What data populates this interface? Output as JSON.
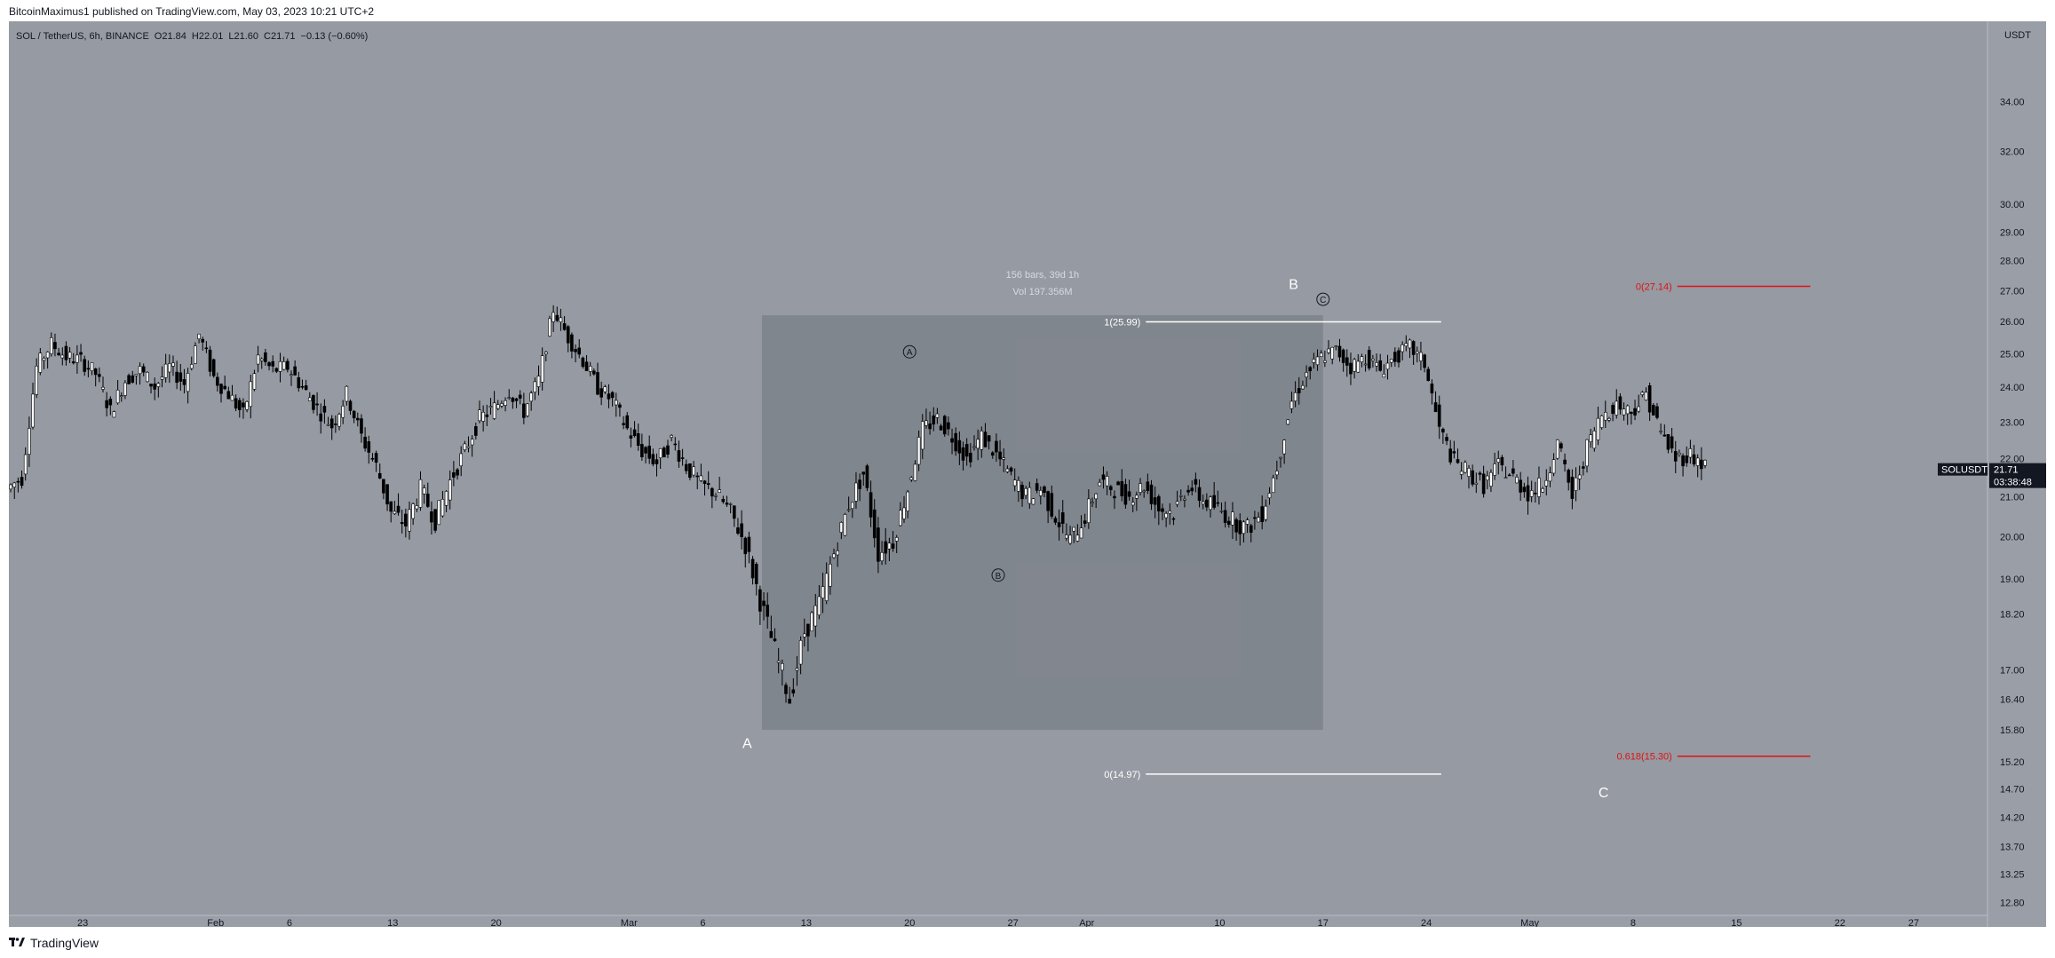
{
  "header": {
    "published": "BitcoinMaximus1 published on TradingView.com, May 03, 2023 10:21 UTC+2"
  },
  "legend": {
    "symbol": "SOL / TetherUS, 6h, BINANCE",
    "o_label": "O",
    "o_value": "21.84",
    "h_label": "H",
    "h_value": "22.01",
    "l_label": "L",
    "l_value": "21.60",
    "c_label": "C",
    "c_value": "21.71",
    "change": "−0.13 (−0.60%)"
  },
  "footer": {
    "brand": "TradingView"
  },
  "colors": {
    "chart_bg": "#959aa3",
    "panel_bg": "#999ea7",
    "box_fill": "#7d828b",
    "candle": "#000000",
    "fib_red": "#e31212",
    "fib_white": "#ffffff",
    "label_white": "#ffffff"
  },
  "chart_data": {
    "type": "candlestick",
    "symbol": "SOLUSDT",
    "interval": "6h",
    "currency": "USDT",
    "y_scale": "log",
    "ylim": [
      12.6,
      37.5
    ],
    "xlim": [
      "2023-01-18",
      "2023-06-01"
    ],
    "y_ticks": [
      "34.00",
      "32.00",
      "30.00",
      "29.00",
      "28.00",
      "27.00",
      "26.00",
      "25.00",
      "24.00",
      "23.00",
      "22.00",
      "21.00",
      "20.00",
      "19.00",
      "18.20",
      "17.00",
      "16.40",
      "15.80",
      "15.20",
      "14.70",
      "14.20",
      "13.70",
      "13.25",
      "12.80"
    ],
    "x_ticks": [
      {
        "date": "2023-01-23",
        "label": "23"
      },
      {
        "date": "2023-02-01",
        "label": "Feb"
      },
      {
        "date": "2023-02-06",
        "label": "6"
      },
      {
        "date": "2023-02-13",
        "label": "13"
      },
      {
        "date": "2023-02-20",
        "label": "20"
      },
      {
        "date": "2023-03-01",
        "label": "Mar"
      },
      {
        "date": "2023-03-06",
        "label": "6"
      },
      {
        "date": "2023-03-13",
        "label": "13"
      },
      {
        "date": "2023-03-20",
        "label": "20"
      },
      {
        "date": "2023-03-27",
        "label": "27"
      },
      {
        "date": "2023-04-01",
        "label": "Apr"
      },
      {
        "date": "2023-04-10",
        "label": "10"
      },
      {
        "date": "2023-04-17",
        "label": "17"
      },
      {
        "date": "2023-04-24",
        "label": "24"
      },
      {
        "date": "2023-05-01",
        "label": "May"
      },
      {
        "date": "2023-05-08",
        "label": "8"
      },
      {
        "date": "2023-05-15",
        "label": "15"
      },
      {
        "date": "2023-05-22",
        "label": "22"
      },
      {
        "date": "2023-05-27",
        "label": "27"
      }
    ],
    "price_path": [
      {
        "t": "2023-01-18",
        "p": 21.2
      },
      {
        "t": "2023-01-19",
        "p": 21.5
      },
      {
        "t": "2023-01-20",
        "p": 24.6
      },
      {
        "t": "2023-01-21",
        "p": 25.3
      },
      {
        "t": "2023-01-22",
        "p": 24.9
      },
      {
        "t": "2023-01-23",
        "p": 24.8
      },
      {
        "t": "2023-01-24",
        "p": 24.4
      },
      {
        "t": "2023-01-25",
        "p": 23.3
      },
      {
        "t": "2023-01-26",
        "p": 24.2
      },
      {
        "t": "2023-01-27",
        "p": 24.5
      },
      {
        "t": "2023-01-28",
        "p": 24.0
      },
      {
        "t": "2023-01-29",
        "p": 24.6
      },
      {
        "t": "2023-01-30",
        "p": 24.1
      },
      {
        "t": "2023-01-31",
        "p": 25.6
      },
      {
        "t": "2023-02-01",
        "p": 24.3
      },
      {
        "t": "2023-02-02",
        "p": 23.8
      },
      {
        "t": "2023-02-03",
        "p": 23.2
      },
      {
        "t": "2023-02-04",
        "p": 24.9
      },
      {
        "t": "2023-02-05",
        "p": 24.5
      },
      {
        "t": "2023-02-06",
        "p": 24.6
      },
      {
        "t": "2023-02-07",
        "p": 24.0
      },
      {
        "t": "2023-02-08",
        "p": 23.4
      },
      {
        "t": "2023-02-09",
        "p": 22.9
      },
      {
        "t": "2023-02-10",
        "p": 23.8
      },
      {
        "t": "2023-02-11",
        "p": 22.6
      },
      {
        "t": "2023-02-12",
        "p": 21.8
      },
      {
        "t": "2023-02-13",
        "p": 20.6
      },
      {
        "t": "2023-02-14",
        "p": 20.3
      },
      {
        "t": "2023-02-15",
        "p": 21.2
      },
      {
        "t": "2023-02-16",
        "p": 20.4
      },
      {
        "t": "2023-02-17",
        "p": 21.4
      },
      {
        "t": "2023-02-18",
        "p": 22.2
      },
      {
        "t": "2023-02-19",
        "p": 23.1
      },
      {
        "t": "2023-02-20",
        "p": 23.4
      },
      {
        "t": "2023-02-21",
        "p": 23.9
      },
      {
        "t": "2023-02-22",
        "p": 23.3
      },
      {
        "t": "2023-02-23",
        "p": 24.2
      },
      {
        "t": "2023-02-24",
        "p": 26.4
      },
      {
        "t": "2023-02-25",
        "p": 25.5
      },
      {
        "t": "2023-02-26",
        "p": 24.8
      },
      {
        "t": "2023-02-27",
        "p": 24.0
      },
      {
        "t": "2023-02-28",
        "p": 23.6
      },
      {
        "t": "2023-03-01",
        "p": 22.8
      },
      {
        "t": "2023-03-02",
        "p": 22.2
      },
      {
        "t": "2023-03-03",
        "p": 21.9
      },
      {
        "t": "2023-03-04",
        "p": 22.5
      },
      {
        "t": "2023-03-05",
        "p": 21.8
      },
      {
        "t": "2023-03-06",
        "p": 21.3
      },
      {
        "t": "2023-03-07",
        "p": 21.1
      },
      {
        "t": "2023-03-08",
        "p": 20.6
      },
      {
        "t": "2023-03-09",
        "p": 19.8
      },
      {
        "t": "2023-03-10",
        "p": 18.5
      },
      {
        "t": "2023-03-11",
        "p": 17.4
      },
      {
        "t": "2023-03-12",
        "p": 16.4
      },
      {
        "t": "2023-03-13",
        "p": 17.8
      },
      {
        "t": "2023-03-14",
        "p": 18.4
      },
      {
        "t": "2023-03-15",
        "p": 19.6
      },
      {
        "t": "2023-03-16",
        "p": 20.8
      },
      {
        "t": "2023-03-17",
        "p": 21.6
      },
      {
        "t": "2023-03-18",
        "p": 19.6
      },
      {
        "t": "2023-03-19",
        "p": 19.9
      },
      {
        "t": "2023-03-20",
        "p": 21.2
      },
      {
        "t": "2023-03-21",
        "p": 22.8
      },
      {
        "t": "2023-03-22",
        "p": 23.1
      },
      {
        "t": "2023-03-23",
        "p": 22.6
      },
      {
        "t": "2023-03-24",
        "p": 22.0
      },
      {
        "t": "2023-03-25",
        "p": 22.6
      },
      {
        "t": "2023-03-26",
        "p": 22.1
      },
      {
        "t": "2023-03-27",
        "p": 21.5
      },
      {
        "t": "2023-03-28",
        "p": 21.0
      },
      {
        "t": "2023-03-29",
        "p": 21.2
      },
      {
        "t": "2023-03-30",
        "p": 20.5
      },
      {
        "t": "2023-03-31",
        "p": 19.9
      },
      {
        "t": "2023-04-01",
        "p": 20.5
      },
      {
        "t": "2023-04-02",
        "p": 21.4
      },
      {
        "t": "2023-04-03",
        "p": 21.2
      },
      {
        "t": "2023-04-04",
        "p": 21.0
      },
      {
        "t": "2023-04-05",
        "p": 21.3
      },
      {
        "t": "2023-04-06",
        "p": 20.7
      },
      {
        "t": "2023-04-07",
        "p": 20.6
      },
      {
        "t": "2023-04-08",
        "p": 21.3
      },
      {
        "t": "2023-04-09",
        "p": 20.9
      },
      {
        "t": "2023-04-10",
        "p": 20.7
      },
      {
        "t": "2023-04-11",
        "p": 20.4
      },
      {
        "t": "2023-04-12",
        "p": 20.2
      },
      {
        "t": "2023-04-13",
        "p": 20.6
      },
      {
        "t": "2023-04-14",
        "p": 21.8
      },
      {
        "t": "2023-04-15",
        "p": 23.6
      },
      {
        "t": "2023-04-16",
        "p": 24.4
      },
      {
        "t": "2023-04-17",
        "p": 24.9
      },
      {
        "t": "2023-04-18",
        "p": 25.1
      },
      {
        "t": "2023-04-19",
        "p": 24.6
      },
      {
        "t": "2023-04-20",
        "p": 24.9
      },
      {
        "t": "2023-04-21",
        "p": 24.5
      },
      {
        "t": "2023-04-22",
        "p": 24.9
      },
      {
        "t": "2023-04-23",
        "p": 25.2
      },
      {
        "t": "2023-04-24",
        "p": 24.7
      },
      {
        "t": "2023-04-25",
        "p": 22.8
      },
      {
        "t": "2023-04-26",
        "p": 21.9
      },
      {
        "t": "2023-04-27",
        "p": 21.6
      },
      {
        "t": "2023-04-28",
        "p": 21.3
      },
      {
        "t": "2023-04-29",
        "p": 21.8
      },
      {
        "t": "2023-04-30",
        "p": 21.5
      },
      {
        "t": "2023-05-01",
        "p": 21.1
      },
      {
        "t": "2023-05-02",
        "p": 21.3
      },
      {
        "t": "2023-05-03",
        "p": 22.4
      },
      {
        "t": "2023-05-04",
        "p": 21.0
      },
      {
        "t": "2023-05-05",
        "p": 22.3
      },
      {
        "t": "2023-05-06",
        "p": 23.2
      },
      {
        "t": "2023-05-07",
        "p": 23.5
      },
      {
        "t": "2023-05-08",
        "p": 23.3
      },
      {
        "t": "2023-05-09",
        "p": 23.8
      },
      {
        "t": "2023-05-10",
        "p": 22.7
      },
      {
        "t": "2023-05-11",
        "p": 22.0
      },
      {
        "t": "2023-05-12",
        "p": 22.1
      },
      {
        "t": "2023-05-13",
        "p": 21.8
      }
    ],
    "measure_box": {
      "start": "2023-03-10",
      "end": "2023-04-17",
      "low": 15.8,
      "high": 26.2,
      "bars_text": "156 bars, 39d 1h",
      "vol_text": "Vol 197.356M"
    },
    "wave_labels": [
      {
        "text": "A",
        "date": "2023-03-09",
        "price": 15.45,
        "style": "plain"
      },
      {
        "text": "B",
        "date": "2023-04-15",
        "price": 27.05,
        "style": "plain"
      },
      {
        "text": "C",
        "date": "2023-05-06",
        "price": 14.55,
        "style": "plain"
      },
      {
        "text": "A",
        "date": "2023-03-20",
        "price": 24.95,
        "style": "circled"
      },
      {
        "text": "B",
        "date": "2023-03-26",
        "price": 19.0,
        "style": "circled"
      },
      {
        "text": "C",
        "date": "2023-04-17",
        "price": 26.6,
        "style": "circled"
      }
    ],
    "fib_levels": [
      {
        "label": "1(25.99)",
        "price": 25.99,
        "start": "2023-04-05",
        "end": "2023-04-25",
        "color": "white"
      },
      {
        "label": "0(14.97)",
        "price": 14.97,
        "start": "2023-04-05",
        "end": "2023-04-25",
        "color": "white"
      },
      {
        "label": "0(27.14)",
        "price": 27.14,
        "start": "2023-05-11",
        "end": "2023-05-20",
        "color": "red"
      },
      {
        "label": "0.618(15.30)",
        "price": 15.3,
        "start": "2023-05-11",
        "end": "2023-05-20",
        "color": "red"
      }
    ],
    "last_price": {
      "symbol": "SOLUSDT",
      "price": "21.71",
      "countdown": "03:38:48"
    },
    "axis_unit": "USDT"
  }
}
